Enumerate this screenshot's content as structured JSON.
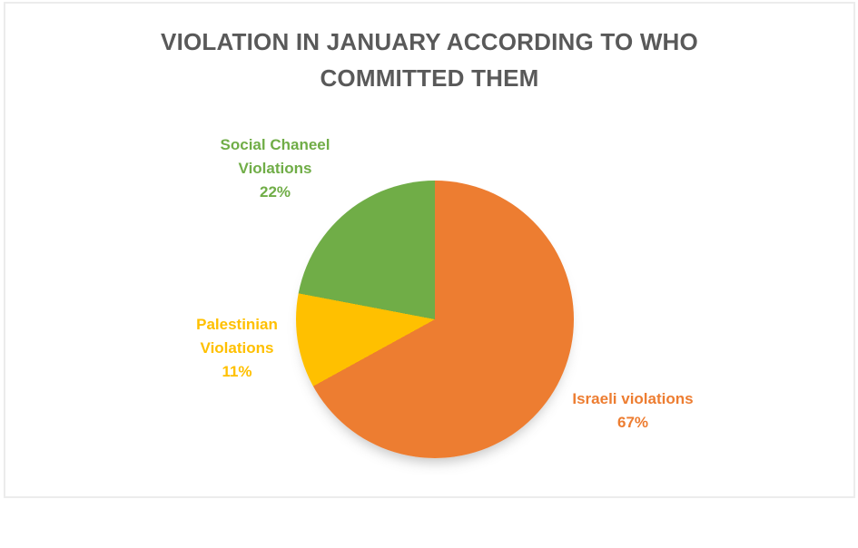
{
  "chart_data": {
    "type": "pie",
    "title": "VIOLATION IN JANUARY ACCORDING TO WHO COMMITTED THEM",
    "title_color": "#595959",
    "legend": "none",
    "start_angle_deg": 0,
    "direction": "clockwise",
    "slices": [
      {
        "label": "Israeli violations",
        "value_pct": 67,
        "pct_label": "67%",
        "color": "#ED7D31"
      },
      {
        "label": "Palestinian Violations",
        "value_pct": 11,
        "pct_label": "11%",
        "color": "#FFC000"
      },
      {
        "label": "Social Chaneel Violations",
        "value_pct": 22,
        "pct_label": "22%",
        "color": "#70AD47"
      }
    ],
    "labels_style": "category name and percentage outside the pie, text colored to match slice"
  }
}
